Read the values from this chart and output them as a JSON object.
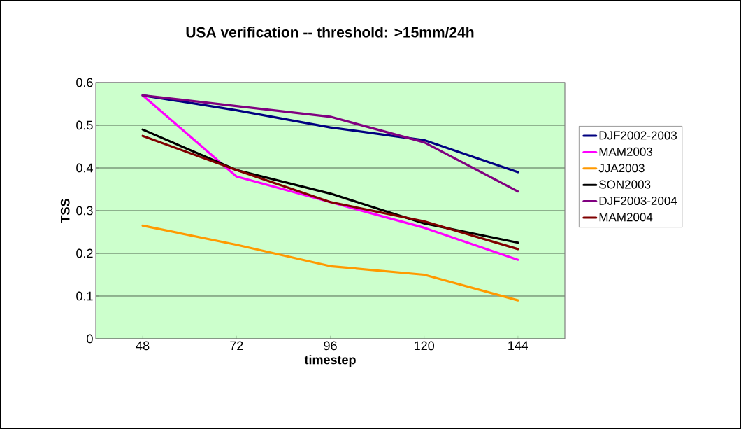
{
  "chart_data": {
    "type": "line",
    "title": "USA verification -- threshold: >15mm/24h",
    "xlabel": "timestep",
    "ylabel": "TSS",
    "categories": [
      "48",
      "72",
      "96",
      "120",
      "144"
    ],
    "series": [
      {
        "name": "DJF2002-2003",
        "color": "#000080",
        "values": [
          0.57,
          0.535,
          0.495,
          0.465,
          0.39
        ]
      },
      {
        "name": "MAM2003",
        "color": "#ff00ff",
        "values": [
          0.57,
          0.38,
          0.32,
          0.26,
          0.185
        ]
      },
      {
        "name": "JJA2003",
        "color": "#ff9900",
        "values": [
          0.265,
          0.22,
          0.17,
          0.15,
          0.09
        ]
      },
      {
        "name": "SON2003",
        "color": "#000000",
        "values": [
          0.49,
          0.395,
          0.34,
          0.27,
          0.225
        ]
      },
      {
        "name": "DJF2003-2004",
        "color": "#800080",
        "values": [
          0.57,
          0.545,
          0.52,
          0.46,
          0.345
        ]
      },
      {
        "name": "MAM2004",
        "color": "#800000",
        "values": [
          0.475,
          0.395,
          0.32,
          0.275,
          0.21
        ]
      }
    ],
    "ylim": [
      0,
      0.6
    ],
    "yticks": [
      0,
      0.1,
      0.2,
      0.3,
      0.4,
      0.5,
      0.6
    ],
    "grid": "y",
    "legend": "right",
    "marker": "none",
    "line_style": "solid"
  }
}
